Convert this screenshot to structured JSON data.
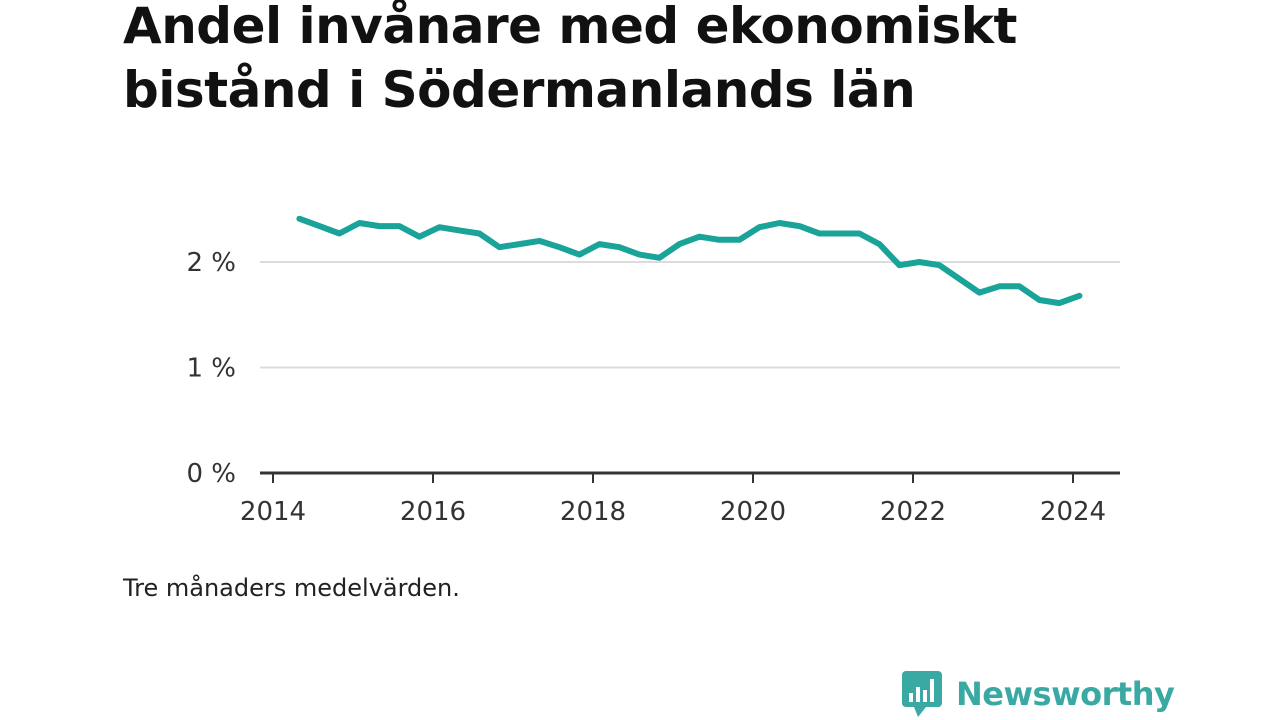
{
  "title": "Andel invånare med ekonomiskt bistånd i Södermanlands län",
  "note": "Tre månaders medelvärden.",
  "brand": {
    "name": "Newsworthy",
    "icon": "bar-chart-speech-bubble-icon",
    "color": "#3aa8a3"
  },
  "chart_data": {
    "type": "line",
    "title": "Andel invånare med ekonomiskt bistånd i Södermanlands län",
    "xlabel": "",
    "ylabel": "",
    "xlim": [
      2014,
      2024.6
    ],
    "ylim": [
      0,
      2.65
    ],
    "x_ticks": [
      2014,
      2016,
      2018,
      2020,
      2022,
      2024
    ],
    "x_tick_labels": [
      "2014",
      "2016",
      "2018",
      "2020",
      "2022",
      "2024"
    ],
    "y_ticks": [
      0,
      1,
      2
    ],
    "y_tick_labels": [
      "0 %",
      "1 %",
      "2 %"
    ],
    "grid": "horizontal",
    "legend": "none",
    "series": [
      {
        "color": "#1aa398",
        "x": [
          2014.33,
          2014.58,
          2014.83,
          2015.08,
          2015.33,
          2015.58,
          2015.83,
          2016.08,
          2016.33,
          2016.58,
          2016.83,
          2017.08,
          2017.33,
          2017.58,
          2017.83,
          2018.08,
          2018.33,
          2018.58,
          2018.83,
          2019.08,
          2019.33,
          2019.58,
          2019.83,
          2020.08,
          2020.33,
          2020.58,
          2020.83,
          2021.08,
          2021.33,
          2021.58,
          2021.83,
          2022.08,
          2022.33,
          2022.58,
          2022.83,
          2023.08,
          2023.33,
          2023.58,
          2023.83,
          2024.08
        ],
        "values": [
          2.41,
          2.34,
          2.27,
          2.37,
          2.34,
          2.34,
          2.24,
          2.33,
          2.3,
          2.27,
          2.14,
          2.17,
          2.2,
          2.14,
          2.07,
          2.17,
          2.14,
          2.07,
          2.04,
          2.17,
          2.24,
          2.21,
          2.21,
          2.33,
          2.37,
          2.34,
          2.27,
          2.27,
          2.27,
          2.17,
          1.97,
          2.0,
          1.97,
          1.84,
          1.71,
          1.77,
          1.77,
          1.64,
          1.61,
          1.68
        ]
      }
    ]
  }
}
